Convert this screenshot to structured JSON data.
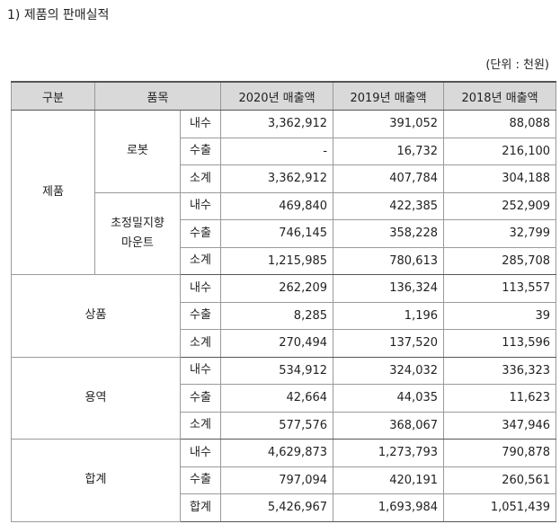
{
  "header": {
    "title": "1) 제품의 판매실적",
    "unit": "(단위 : 천원)"
  },
  "table": {
    "columns": [
      "구분",
      "품목",
      "2020년 매출액",
      "2019년 매출액",
      "2018년 매출액"
    ],
    "sections": [
      {
        "label": "제품",
        "items": [
          {
            "label": "로봇",
            "rows": [
              [
                "내수",
                "3,362,912",
                "391,052",
                "88,088"
              ],
              [
                "수출",
                "-",
                "16,732",
                "216,100"
              ],
              [
                "소계",
                "3,362,912",
                "407,784",
                "304,188"
              ]
            ]
          },
          {
            "label": "초정밀지향\n마운트",
            "rows": [
              [
                "내수",
                "469,840",
                "422,385",
                "252,909"
              ],
              [
                "수출",
                "746,145",
                "358,228",
                "32,799"
              ],
              [
                "소계",
                "1,215,985",
                "780,613",
                "285,708"
              ]
            ]
          }
        ]
      },
      {
        "label": "상품",
        "rows": [
          [
            "내수",
            "262,209",
            "136,324",
            "113,557"
          ],
          [
            "수출",
            "8,285",
            "1,196",
            "39"
          ],
          [
            "소계",
            "270,494",
            "137,520",
            "113,596"
          ]
        ]
      },
      {
        "label": "용역",
        "rows": [
          [
            "내수",
            "534,912",
            "324,032",
            "336,323"
          ],
          [
            "수출",
            "42,664",
            "44,035",
            "11,623"
          ],
          [
            "소계",
            "577,576",
            "368,067",
            "347,946"
          ]
        ]
      },
      {
        "label": "합계",
        "rows": [
          [
            "내수",
            "4,629,873",
            "1,273,793",
            "790,878"
          ],
          [
            "수출",
            "797,094",
            "420,191",
            "260,561"
          ],
          [
            "합계",
            "5,426,967",
            "1,693,984",
            "1,051,439"
          ]
        ]
      }
    ]
  }
}
